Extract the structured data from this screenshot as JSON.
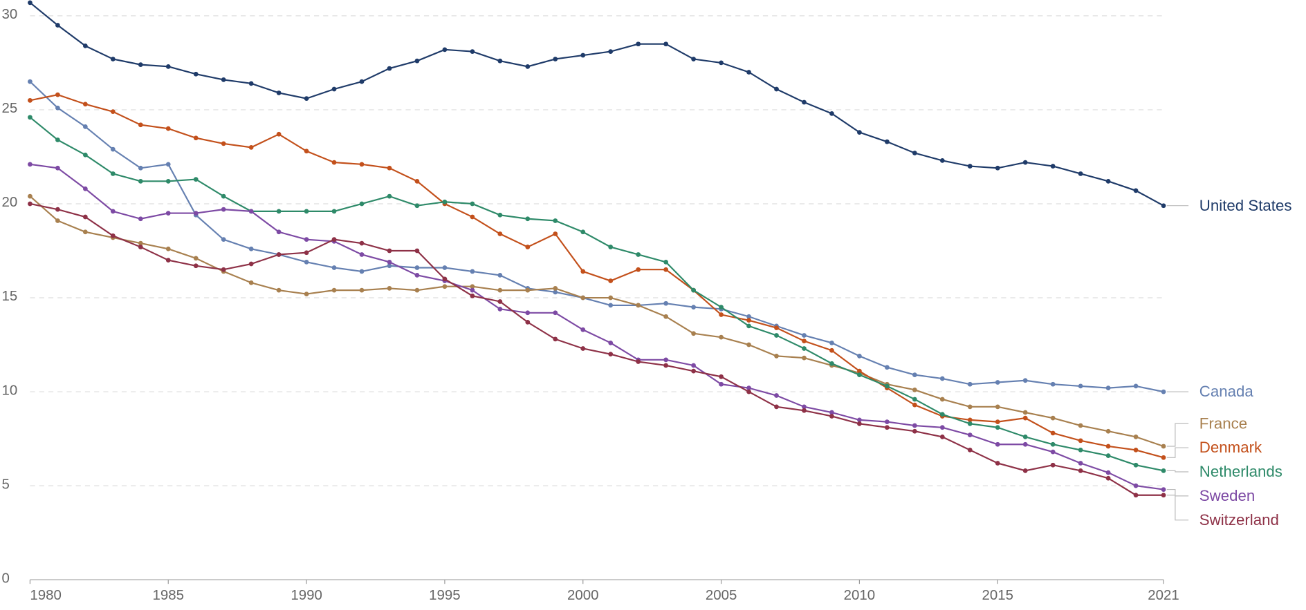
{
  "chart_data": {
    "type": "line",
    "x": [
      1980,
      1981,
      1982,
      1983,
      1984,
      1985,
      1986,
      1987,
      1988,
      1989,
      1990,
      1991,
      1992,
      1993,
      1994,
      1995,
      1996,
      1997,
      1998,
      1999,
      2000,
      2001,
      2002,
      2003,
      2004,
      2005,
      2006,
      2007,
      2008,
      2009,
      2010,
      2011,
      2012,
      2013,
      2014,
      2015,
      2016,
      2017,
      2018,
      2019,
      2020,
      2021
    ],
    "series": [
      {
        "name": "United States",
        "color": "#1f3b69",
        "values": [
          30.7,
          29.5,
          28.4,
          27.7,
          27.4,
          27.3,
          26.9,
          26.6,
          26.4,
          25.9,
          25.6,
          26.1,
          26.5,
          27.2,
          27.6,
          28.2,
          28.1,
          27.6,
          27.3,
          27.7,
          27.9,
          28.1,
          28.5,
          28.5,
          27.7,
          27.5,
          27.0,
          26.1,
          25.4,
          24.8,
          23.8,
          23.3,
          22.7,
          22.3,
          22.0,
          21.9,
          22.2,
          22.0,
          21.6,
          21.2,
          20.7,
          19.9
        ]
      },
      {
        "name": "Canada",
        "color": "#6580b1",
        "values": [
          26.5,
          25.1,
          24.1,
          22.9,
          21.9,
          22.1,
          19.4,
          18.1,
          17.6,
          17.3,
          16.9,
          16.6,
          16.4,
          16.7,
          16.6,
          16.6,
          16.4,
          16.2,
          15.5,
          15.3,
          15.0,
          14.6,
          14.6,
          14.7,
          14.5,
          14.4,
          14.0,
          13.5,
          13.0,
          12.6,
          11.9,
          11.3,
          10.9,
          10.7,
          10.4,
          10.5,
          10.6,
          10.4,
          10.3,
          10.2,
          10.3,
          10.0
        ]
      },
      {
        "name": "France",
        "color": "#a8804f",
        "values": [
          20.4,
          19.1,
          18.5,
          18.2,
          17.9,
          17.6,
          17.1,
          16.4,
          15.8,
          15.4,
          15.2,
          15.4,
          15.4,
          15.5,
          15.4,
          15.6,
          15.6,
          15.4,
          15.4,
          15.5,
          15.0,
          15.0,
          14.6,
          14.0,
          13.1,
          12.9,
          12.5,
          11.9,
          11.8,
          11.4,
          11.0,
          10.4,
          10.1,
          9.6,
          9.2,
          9.2,
          8.9,
          8.6,
          8.2,
          7.9,
          7.6,
          7.1
        ]
      },
      {
        "name": "Denmark",
        "color": "#c3501b",
        "values": [
          25.5,
          25.8,
          25.3,
          24.9,
          24.2,
          24.0,
          23.5,
          23.2,
          23.0,
          23.7,
          22.8,
          22.2,
          22.1,
          21.9,
          21.2,
          20.0,
          19.3,
          18.4,
          17.7,
          18.4,
          16.4,
          15.9,
          16.5,
          16.5,
          15.4,
          14.1,
          13.8,
          13.4,
          12.7,
          12.2,
          11.1,
          10.2,
          9.3,
          8.7,
          8.5,
          8.4,
          8.6,
          7.8,
          7.4,
          7.1,
          6.9,
          6.5
        ]
      },
      {
        "name": "Netherlands",
        "color": "#2e8a69",
        "values": [
          24.6,
          23.4,
          22.6,
          21.6,
          21.2,
          21.2,
          21.3,
          20.4,
          19.6,
          19.6,
          19.6,
          19.6,
          20.0,
          20.4,
          19.9,
          20.1,
          20.0,
          19.4,
          19.2,
          19.1,
          18.5,
          17.7,
          17.3,
          16.9,
          15.4,
          14.5,
          13.5,
          13.0,
          12.3,
          11.5,
          10.9,
          10.3,
          9.6,
          8.8,
          8.3,
          8.1,
          7.6,
          7.2,
          6.9,
          6.6,
          6.1,
          5.8
        ]
      },
      {
        "name": "Sweden",
        "color": "#7d4aa4",
        "values": [
          22.1,
          21.9,
          20.8,
          19.6,
          19.2,
          19.5,
          19.5,
          19.7,
          19.6,
          18.5,
          18.1,
          18.0,
          17.3,
          16.9,
          16.2,
          15.9,
          15.4,
          14.4,
          14.2,
          14.2,
          13.3,
          12.6,
          11.7,
          11.7,
          11.4,
          10.4,
          10.2,
          9.8,
          9.2,
          8.9,
          8.5,
          8.4,
          8.2,
          8.1,
          7.7,
          7.2,
          7.2,
          6.8,
          6.2,
          5.7,
          5.0,
          4.8
        ]
      },
      {
        "name": "Switzerland",
        "color": "#8e3147",
        "values": [
          20.0,
          19.7,
          19.3,
          18.3,
          17.7,
          17.0,
          16.7,
          16.5,
          16.8,
          17.3,
          17.4,
          18.1,
          17.9,
          17.5,
          17.5,
          16.0,
          15.1,
          14.8,
          13.7,
          12.8,
          12.3,
          12.0,
          11.6,
          11.4,
          11.1,
          10.8,
          10.0,
          9.2,
          9.0,
          8.7,
          8.3,
          8.1,
          7.9,
          7.6,
          6.9,
          6.2,
          5.8,
          6.1,
          5.8,
          5.4,
          4.5,
          4.5
        ]
      }
    ],
    "xlim": [
      1980,
      2021
    ],
    "ylim": [
      0,
      30
    ],
    "xticks": [
      1980,
      1985,
      1990,
      1995,
      2000,
      2005,
      2010,
      2015,
      2021
    ],
    "yticks": [
      0,
      5,
      10,
      15,
      20,
      25,
      30
    ],
    "grid": true
  }
}
